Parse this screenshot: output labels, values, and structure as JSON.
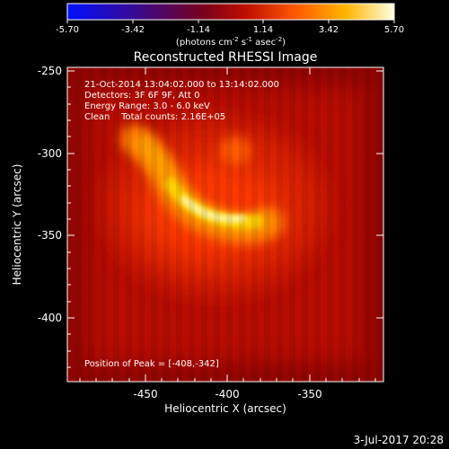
{
  "colorbar": {
    "ticks": [
      "-5.70",
      "-3.42",
      "-1.14",
      "1.14",
      "3.42",
      "5.70"
    ],
    "unit_prefix": "(photons cm",
    "unit_sup1": "-2",
    "unit_mid": " s",
    "unit_sup2": "-1",
    "unit_mid2": " asec",
    "unit_sup3": "-2",
    "unit_suffix": ")"
  },
  "title": "Reconstructed RHESSI Image",
  "info": {
    "line1": "21-Oct-2014 13:04:02.000 to 13:14:02.000",
    "line2": "Detectors: 3F 6F 9F, Att 0",
    "line3": "Energy Range: 3.0 - 6.0 keV",
    "line4": "Clean    Total counts: 2.16E+05"
  },
  "peak_label": "Position of Peak = [-408,-342]",
  "axes": {
    "xlabel": "Heliocentric X (arcsec)",
    "ylabel": "Heliocentric Y (arcsec)",
    "xticks": [
      "-450",
      "-400",
      "-350"
    ],
    "yticks": [
      "-250",
      "-300",
      "-350",
      "-400"
    ]
  },
  "footer_date": "3-Jul-2017 20:28",
  "colors": {
    "background": "#000000",
    "colormap": [
      "#0000ff",
      "#3a0066",
      "#7a0000",
      "#cc1a00",
      "#ff6a00",
      "#ffd21a",
      "#ffffff"
    ]
  }
}
